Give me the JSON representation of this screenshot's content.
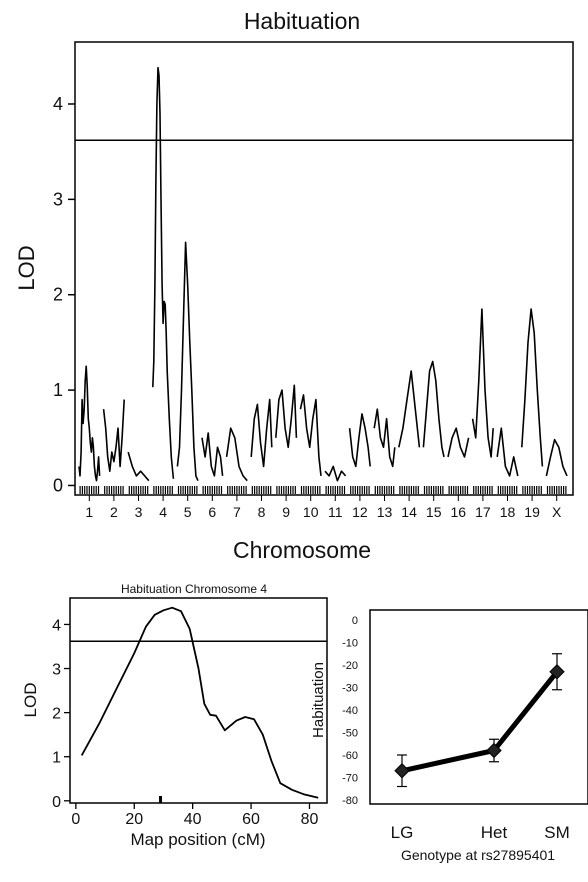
{
  "chart_data": [
    {
      "type": "line",
      "title": "Habituation",
      "xlabel": "Chromosome",
      "ylabel": "LOD",
      "ylim": [
        -0.1,
        4.65
      ],
      "yticks": [
        0,
        1,
        2,
        3,
        4
      ],
      "threshold": 3.62,
      "categories": [
        "1",
        "2",
        "3",
        "4",
        "5",
        "6",
        "7",
        "8",
        "9",
        "10",
        "11",
        "12",
        "13",
        "14",
        "15",
        "16",
        "17",
        "18",
        "19",
        "X"
      ],
      "series": [
        {
          "chromosome": "1",
          "x": [
            0.0,
            0.05,
            0.1,
            0.15,
            0.2,
            0.25,
            0.3,
            0.35,
            0.4,
            0.45,
            0.5,
            0.55,
            0.6,
            0.65,
            0.7,
            0.75,
            0.8,
            0.85,
            0.9,
            0.95,
            1.0
          ],
          "y": [
            0.2,
            0.1,
            0.35,
            0.9,
            0.65,
            0.8,
            1.1,
            1.25,
            1.05,
            0.7,
            0.6,
            0.45,
            0.35,
            0.5,
            0.4,
            0.2,
            0.1,
            0.05,
            0.15,
            0.3,
            0.1
          ]
        },
        {
          "chromosome": "2",
          "x": [
            0.0,
            0.1,
            0.2,
            0.3,
            0.4,
            0.5,
            0.6,
            0.7,
            0.8,
            0.9,
            1.0
          ],
          "y": [
            0.8,
            0.6,
            0.3,
            0.15,
            0.35,
            0.25,
            0.4,
            0.6,
            0.2,
            0.5,
            0.9
          ]
        },
        {
          "chromosome": "3",
          "x": [
            0.0,
            0.2,
            0.4,
            0.6,
            0.8,
            1.0
          ],
          "y": [
            0.35,
            0.2,
            0.1,
            0.15,
            0.1,
            0.05
          ]
        },
        {
          "chromosome": "4",
          "x": [
            0.0,
            0.05,
            0.1,
            0.15,
            0.2,
            0.25,
            0.3,
            0.35,
            0.4,
            0.45,
            0.5,
            0.55,
            0.6,
            0.65,
            0.7,
            0.8,
            0.9,
            1.0
          ],
          "y": [
            1.03,
            1.3,
            2.1,
            3.2,
            4.0,
            4.38,
            4.3,
            3.9,
            3.0,
            2.1,
            1.7,
            1.93,
            1.9,
            1.6,
            1.2,
            0.7,
            0.3,
            0.07
          ]
        },
        {
          "chromosome": "5",
          "x": [
            0.0,
            0.1,
            0.2,
            0.3,
            0.4,
            0.5,
            0.6,
            0.7,
            0.8,
            0.9,
            1.0
          ],
          "y": [
            0.2,
            0.4,
            1.0,
            1.8,
            2.55,
            2.1,
            1.5,
            1.0,
            0.4,
            0.1,
            0.05
          ]
        },
        {
          "chromosome": "6",
          "x": [
            0.0,
            0.15,
            0.3,
            0.45,
            0.6,
            0.75,
            0.9,
            1.0
          ],
          "y": [
            0.5,
            0.3,
            0.55,
            0.2,
            0.1,
            0.4,
            0.3,
            0.1
          ]
        },
        {
          "chromosome": "7",
          "x": [
            0.0,
            0.2,
            0.4,
            0.6,
            0.8,
            1.0
          ],
          "y": [
            0.3,
            0.6,
            0.5,
            0.2,
            0.1,
            0.05
          ]
        },
        {
          "chromosome": "8",
          "x": [
            0.0,
            0.15,
            0.3,
            0.45,
            0.6,
            0.75,
            0.9,
            1.0
          ],
          "y": [
            0.3,
            0.7,
            0.85,
            0.45,
            0.2,
            0.6,
            0.9,
            0.4
          ]
        },
        {
          "chromosome": "9",
          "x": [
            0.0,
            0.15,
            0.3,
            0.45,
            0.6,
            0.75,
            0.9,
            1.0
          ],
          "y": [
            0.5,
            0.9,
            1.0,
            0.6,
            0.4,
            0.7,
            1.05,
            0.5
          ]
        },
        {
          "chromosome": "10",
          "x": [
            0.0,
            0.15,
            0.3,
            0.45,
            0.6,
            0.75,
            0.9,
            1.0
          ],
          "y": [
            0.8,
            0.95,
            0.6,
            0.4,
            0.7,
            0.9,
            0.3,
            0.1
          ]
        },
        {
          "chromosome": "11",
          "x": [
            0.0,
            0.2,
            0.4,
            0.6,
            0.8,
            1.0
          ],
          "y": [
            0.15,
            0.1,
            0.2,
            0.05,
            0.15,
            0.1
          ]
        },
        {
          "chromosome": "12",
          "x": [
            0.0,
            0.15,
            0.3,
            0.45,
            0.6,
            0.75,
            0.9,
            1.0
          ],
          "y": [
            0.6,
            0.3,
            0.2,
            0.5,
            0.75,
            0.6,
            0.4,
            0.2
          ]
        },
        {
          "chromosome": "13",
          "x": [
            0.0,
            0.15,
            0.3,
            0.45,
            0.6,
            0.75,
            0.9,
            1.0
          ],
          "y": [
            0.6,
            0.8,
            0.5,
            0.4,
            0.7,
            0.3,
            0.2,
            0.4
          ]
        },
        {
          "chromosome": "14",
          "x": [
            0.0,
            0.2,
            0.4,
            0.6,
            0.8,
            1.0
          ],
          "y": [
            0.4,
            0.6,
            0.9,
            1.2,
            0.8,
            0.4
          ]
        },
        {
          "chromosome": "15",
          "x": [
            0.0,
            0.15,
            0.3,
            0.45,
            0.6,
            0.75,
            0.9,
            1.0
          ],
          "y": [
            0.4,
            0.8,
            1.2,
            1.3,
            1.1,
            0.7,
            0.4,
            0.3
          ]
        },
        {
          "chromosome": "16",
          "x": [
            0.0,
            0.2,
            0.4,
            0.6,
            0.8,
            1.0
          ],
          "y": [
            0.3,
            0.5,
            0.6,
            0.4,
            0.3,
            0.5
          ]
        },
        {
          "chromosome": "17",
          "x": [
            0.0,
            0.15,
            0.3,
            0.45,
            0.6,
            0.75,
            0.9,
            1.0
          ],
          "y": [
            0.7,
            0.5,
            1.1,
            1.85,
            1.0,
            0.5,
            0.3,
            0.6
          ]
        },
        {
          "chromosome": "18",
          "x": [
            0.0,
            0.2,
            0.4,
            0.6,
            0.8,
            1.0
          ],
          "y": [
            0.3,
            0.6,
            0.2,
            0.1,
            0.3,
            0.1
          ]
        },
        {
          "chromosome": "19",
          "x": [
            0.0,
            0.15,
            0.3,
            0.45,
            0.6,
            0.75,
            0.9,
            1.0
          ],
          "y": [
            0.4,
            0.9,
            1.5,
            1.85,
            1.6,
            1.0,
            0.5,
            0.2
          ]
        },
        {
          "chromosome": "X",
          "x": [
            0.0,
            0.2,
            0.4,
            0.6,
            0.8,
            1.0
          ],
          "y": [
            0.1,
            0.3,
            0.48,
            0.4,
            0.2,
            0.1
          ]
        }
      ]
    },
    {
      "type": "line",
      "title": "Habituation Chromosome 4",
      "xlabel": "Map position (cM)",
      "ylabel": "LOD",
      "xlim": [
        -2,
        86
      ],
      "ylim": [
        -0.05,
        4.6
      ],
      "xticks": [
        0,
        20,
        40,
        60,
        80
      ],
      "yticks": [
        0,
        1,
        2,
        3,
        4
      ],
      "threshold": 3.62,
      "marker_cM": 29,
      "x": [
        2,
        8,
        14,
        20,
        24,
        27,
        30,
        33,
        36,
        39,
        42,
        44,
        46,
        48,
        51,
        55,
        58,
        61,
        64,
        67,
        70,
        74,
        78,
        83
      ],
      "y": [
        1.03,
        1.75,
        2.55,
        3.35,
        3.95,
        4.22,
        4.32,
        4.38,
        4.3,
        3.9,
        3.0,
        2.2,
        1.95,
        1.93,
        1.6,
        1.82,
        1.9,
        1.85,
        1.5,
        0.9,
        0.4,
        0.25,
        0.15,
        0.07
      ]
    },
    {
      "type": "line",
      "title": "",
      "xlabel": "Genotype at rs27895401",
      "ylabel": "Habituation",
      "ylim": [
        -80,
        0
      ],
      "yticks": [
        0,
        -10,
        -20,
        -30,
        -40,
        -50,
        -60,
        -70,
        -80
      ],
      "categories": [
        "LG",
        "Het",
        "SM"
      ],
      "values": [
        -67,
        -58,
        -23
      ],
      "errors": [
        7,
        5,
        8
      ]
    }
  ]
}
